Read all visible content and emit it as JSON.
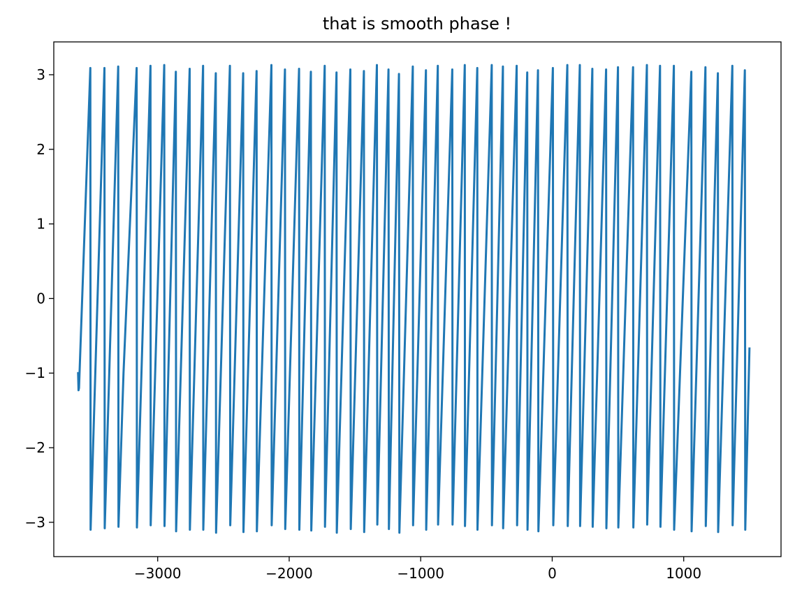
{
  "chart_data": {
    "type": "line",
    "title": "that is smooth phase !",
    "xlabel": "",
    "ylabel": "",
    "xlim": [
      -3790,
      1740
    ],
    "ylim": [
      -3.46,
      3.44
    ],
    "x_ticks": [
      -3000,
      -2000,
      -1000,
      0,
      1000
    ],
    "x_tick_labels": [
      "−3000",
      "−2000",
      "−1000",
      "0",
      "1000"
    ],
    "y_ticks": [
      -3,
      -2,
      -1,
      0,
      1,
      2,
      3
    ],
    "y_tick_labels": [
      "−3",
      "−2",
      "−1",
      "0",
      "1",
      "2",
      "3"
    ],
    "grid": false,
    "line_color": "#1f77b4",
    "series": [
      {
        "x": [
          -3605,
          -3602,
          -3598,
          -3512,
          -3510,
          -3405,
          -3403,
          -3300,
          -3298,
          -3260,
          -3160,
          -3158,
          -3055,
          -3053,
          -2950,
          -2948,
          -2862,
          -2860,
          -2757,
          -2755,
          -2655,
          -2653,
          -2558,
          -2556,
          -2451,
          -2448,
          -2350,
          -2348,
          -2248,
          -2246,
          -2135,
          -2133,
          -2032,
          -2030,
          -1925,
          -1923,
          -1835,
          -1832,
          -1730,
          -1728,
          -1640,
          -1638,
          -1535,
          -1532,
          -1432,
          -1430,
          -1333,
          -1330,
          -1245,
          -1242,
          -1165,
          -1162,
          -1060,
          -1058,
          -960,
          -958,
          -870,
          -868,
          -760,
          -758,
          -665,
          -663,
          -570,
          -568,
          -460,
          -458,
          -375,
          -373,
          -270,
          -267,
          -190,
          -188,
          -108,
          -105,
          5,
          8,
          115,
          118,
          210,
          212,
          305,
          308,
          410,
          412,
          500,
          503,
          615,
          617,
          720,
          722,
          820,
          823,
          925,
          927,
          1058,
          1060,
          1165,
          1168,
          1260,
          1262,
          1370,
          1372,
          1465,
          1468,
          1500
        ],
        "y": [
          -1.0,
          -1.23,
          -1.2,
          3.09,
          -3.1,
          3.09,
          -3.08,
          3.11,
          -3.06,
          -1.0,
          3.09,
          -3.07,
          3.12,
          -3.04,
          3.13,
          -3.05,
          3.04,
          -3.12,
          3.08,
          -3.1,
          3.12,
          -3.1,
          3.02,
          -3.14,
          3.12,
          -3.04,
          3.02,
          -3.13,
          3.05,
          -3.12,
          3.13,
          -3.04,
          3.07,
          -3.09,
          3.08,
          -3.1,
          3.04,
          -3.11,
          3.12,
          -3.06,
          3.03,
          -3.14,
          3.07,
          -3.09,
          3.05,
          -3.13,
          3.13,
          -3.03,
          3.07,
          -3.09,
          3.01,
          -3.14,
          3.11,
          -3.04,
          3.06,
          -3.1,
          3.12,
          -3.03,
          3.07,
          -3.03,
          3.13,
          -3.05,
          3.09,
          -3.1,
          3.13,
          -3.04,
          3.11,
          -3.08,
          3.12,
          -3.04,
          3.03,
          -3.1,
          3.06,
          -3.12,
          3.09,
          -3.04,
          3.13,
          -3.05,
          3.13,
          -3.05,
          3.08,
          -3.06,
          3.07,
          -3.08,
          3.1,
          -3.07,
          3.1,
          -3.07,
          3.13,
          -3.03,
          3.12,
          -3.06,
          3.12,
          -3.1,
          3.04,
          -3.12,
          3.1,
          -3.05,
          3.02,
          -3.13,
          3.12,
          -3.04,
          3.06,
          -3.1,
          -0.67
        ]
      }
    ]
  }
}
